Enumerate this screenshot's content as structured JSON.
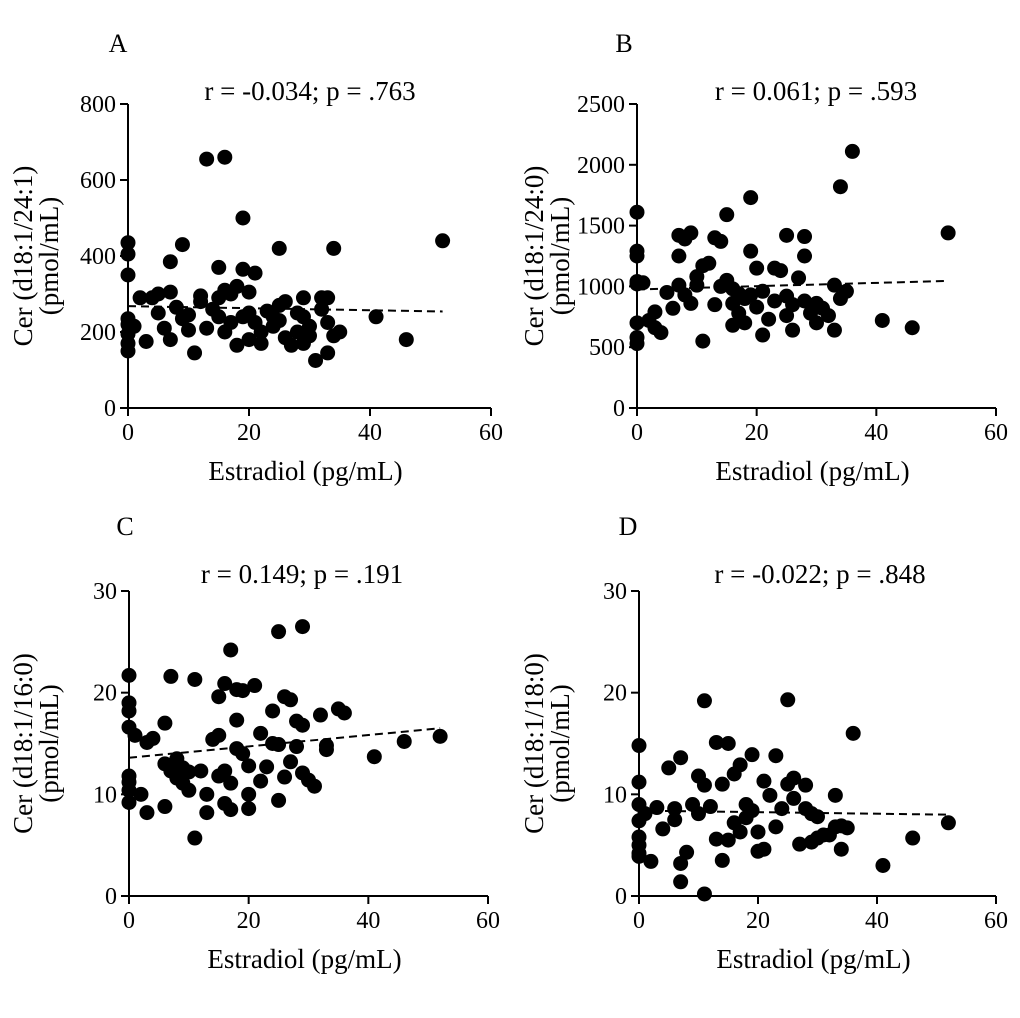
{
  "figure": {
    "background": "#ffffff",
    "ink": "#000000"
  },
  "chart_data": [
    {
      "id": "A",
      "type": "scatter",
      "panel_label": "A",
      "annotation": "r = -0.034; p = .763",
      "xlabel": "Estradiol (pg/mL)",
      "ylabel_lines": [
        "Cer (d18:1/24:1)",
        "(pmol/mL)"
      ],
      "xlim": [
        0,
        60
      ],
      "ylim": [
        0,
        800
      ],
      "xticks": [
        0,
        20,
        40,
        60
      ],
      "yticks": [
        0,
        200,
        400,
        600,
        800
      ],
      "trend": {
        "x0": 0,
        "y0": 268,
        "x1": 52,
        "y1": 254,
        "style": "dashed"
      },
      "points": [
        [
          0,
          435
        ],
        [
          0,
          405
        ],
        [
          0,
          350
        ],
        [
          0,
          235
        ],
        [
          0,
          220
        ],
        [
          0,
          195
        ],
        [
          0,
          170
        ],
        [
          0,
          150
        ],
        [
          1,
          215
        ],
        [
          2,
          290
        ],
        [
          3,
          175
        ],
        [
          4,
          290
        ],
        [
          5,
          250
        ],
        [
          5,
          300
        ],
        [
          6,
          210
        ],
        [
          7,
          180
        ],
        [
          7,
          385
        ],
        [
          7,
          305
        ],
        [
          8,
          265
        ],
        [
          9,
          430
        ],
        [
          9,
          235
        ],
        [
          10,
          245
        ],
        [
          10,
          205
        ],
        [
          11,
          145
        ],
        [
          12,
          280
        ],
        [
          12,
          295
        ],
        [
          13,
          210
        ],
        [
          13,
          655
        ],
        [
          14,
          260
        ],
        [
          15,
          240
        ],
        [
          15,
          370
        ],
        [
          16,
          660
        ],
        [
          15,
          290
        ],
        [
          16,
          310
        ],
        [
          16,
          200
        ],
        [
          17,
          225
        ],
        [
          17,
          300
        ],
        [
          18,
          320
        ],
        [
          18,
          165
        ],
        [
          19,
          500
        ],
        [
          19,
          240
        ],
        [
          19,
          365
        ],
        [
          20,
          305
        ],
        [
          20,
          180
        ],
        [
          20,
          250
        ],
        [
          21,
          355
        ],
        [
          21,
          225
        ],
        [
          22,
          200
        ],
        [
          22,
          170
        ],
        [
          23,
          255
        ],
        [
          24,
          240
        ],
        [
          24,
          215
        ],
        [
          25,
          420
        ],
        [
          25,
          270
        ],
        [
          25,
          230
        ],
        [
          26,
          280
        ],
        [
          26,
          185
        ],
        [
          27,
          165
        ],
        [
          28,
          250
        ],
        [
          28,
          200
        ],
        [
          29,
          290
        ],
        [
          29,
          240
        ],
        [
          29,
          170
        ],
        [
          30,
          215
        ],
        [
          30,
          190
        ],
        [
          31,
          125
        ],
        [
          32,
          290
        ],
        [
          32,
          260
        ],
        [
          33,
          290
        ],
        [
          33,
          225
        ],
        [
          33,
          145
        ],
        [
          34,
          420
        ],
        [
          34,
          190
        ],
        [
          35,
          200
        ],
        [
          41,
          240
        ],
        [
          46,
          180
        ],
        [
          52,
          440
        ]
      ]
    },
    {
      "id": "B",
      "type": "scatter",
      "panel_label": "B",
      "annotation": "r = 0.061; p = .593",
      "xlabel": "Estradiol (pg/mL)",
      "ylabel_lines": [
        "Cer (d18:1/24:0)",
        "(pmol/mL)"
      ],
      "xlim": [
        0,
        60
      ],
      "ylim": [
        0,
        2500
      ],
      "xticks": [
        0,
        20,
        40,
        60
      ],
      "yticks": [
        0,
        500,
        1000,
        1500,
        2000,
        2500
      ],
      "trend": {
        "x0": 0,
        "y0": 975,
        "x1": 52,
        "y1": 1045,
        "style": "dashed"
      },
      "points": [
        [
          0,
          1610
        ],
        [
          0,
          1290
        ],
        [
          0,
          1250
        ],
        [
          0,
          1040
        ],
        [
          0,
          1020
        ],
        [
          0,
          700
        ],
        [
          0,
          580
        ],
        [
          0,
          530
        ],
        [
          1,
          1030
        ],
        [
          2,
          720
        ],
        [
          3,
          790
        ],
        [
          3,
          660
        ],
        [
          4,
          620
        ],
        [
          5,
          950
        ],
        [
          6,
          820
        ],
        [
          7,
          1250
        ],
        [
          7,
          1420
        ],
        [
          7,
          1010
        ],
        [
          8,
          1390
        ],
        [
          8,
          930
        ],
        [
          9,
          1440
        ],
        [
          9,
          860
        ],
        [
          10,
          1080
        ],
        [
          10,
          1010
        ],
        [
          11,
          550
        ],
        [
          11,
          1170
        ],
        [
          12,
          1190
        ],
        [
          13,
          850
        ],
        [
          13,
          1400
        ],
        [
          14,
          1370
        ],
        [
          14,
          1000
        ],
        [
          15,
          1590
        ],
        [
          15,
          1050
        ],
        [
          16,
          980
        ],
        [
          16,
          860
        ],
        [
          16,
          680
        ],
        [
          17,
          940
        ],
        [
          17,
          780
        ],
        [
          18,
          900
        ],
        [
          18,
          700
        ],
        [
          19,
          1730
        ],
        [
          19,
          1290
        ],
        [
          19,
          930
        ],
        [
          20,
          1150
        ],
        [
          20,
          830
        ],
        [
          21,
          600
        ],
        [
          21,
          960
        ],
        [
          22,
          730
        ],
        [
          23,
          1150
        ],
        [
          23,
          880
        ],
        [
          24,
          1130
        ],
        [
          25,
          1420
        ],
        [
          25,
          920
        ],
        [
          25,
          760
        ],
        [
          26,
          850
        ],
        [
          26,
          640
        ],
        [
          27,
          1070
        ],
        [
          28,
          1410
        ],
        [
          28,
          1250
        ],
        [
          28,
          880
        ],
        [
          29,
          780
        ],
        [
          30,
          860
        ],
        [
          30,
          700
        ],
        [
          31,
          820
        ],
        [
          32,
          760
        ],
        [
          33,
          1010
        ],
        [
          33,
          640
        ],
        [
          34,
          1820
        ],
        [
          34,
          900
        ],
        [
          35,
          960
        ],
        [
          36,
          2110
        ],
        [
          41,
          720
        ],
        [
          46,
          660
        ],
        [
          52,
          1440
        ]
      ]
    },
    {
      "id": "C",
      "type": "scatter",
      "panel_label": "C",
      "annotation": "r = 0.149; p = .191",
      "xlabel": "Estradiol (pg/mL)",
      "ylabel_lines": [
        "Cer (d18:1/16:0)",
        "(pmol/mL)"
      ],
      "xlim": [
        0,
        60
      ],
      "ylim": [
        0,
        30
      ],
      "xticks": [
        0,
        20,
        40,
        60
      ],
      "yticks": [
        0,
        10,
        20,
        30
      ],
      "trend": {
        "x0": 0,
        "y0": 13.6,
        "x1": 52,
        "y1": 16.5,
        "style": "dashed"
      },
      "points": [
        [
          0,
          21.7
        ],
        [
          0,
          19.0
        ],
        [
          0,
          18.2
        ],
        [
          0,
          16.6
        ],
        [
          0,
          11.8
        ],
        [
          0,
          11.2
        ],
        [
          0,
          10.4
        ],
        [
          0,
          9.2
        ],
        [
          1,
          15.8
        ],
        [
          2,
          10.0
        ],
        [
          3,
          8.2
        ],
        [
          3,
          15.1
        ],
        [
          4,
          15.5
        ],
        [
          6,
          13.0
        ],
        [
          6,
          8.8
        ],
        [
          6,
          17.0
        ],
        [
          7,
          21.6
        ],
        [
          7,
          12.3
        ],
        [
          8,
          13.5
        ],
        [
          8,
          11.6
        ],
        [
          9,
          12.6
        ],
        [
          9,
          11.1
        ],
        [
          10,
          12.2
        ],
        [
          10,
          10.4
        ],
        [
          11,
          5.7
        ],
        [
          11,
          21.3
        ],
        [
          12,
          12.3
        ],
        [
          13,
          8.2
        ],
        [
          13,
          10.0
        ],
        [
          14,
          15.4
        ],
        [
          15,
          19.6
        ],
        [
          15,
          15.8
        ],
        [
          15,
          11.8
        ],
        [
          16,
          20.9
        ],
        [
          16,
          12.3
        ],
        [
          16,
          9.1
        ],
        [
          17,
          24.2
        ],
        [
          17,
          8.5
        ],
        [
          17,
          11.1
        ],
        [
          18,
          20.3
        ],
        [
          18,
          17.3
        ],
        [
          18,
          14.5
        ],
        [
          19,
          20.2
        ],
        [
          19,
          14.0
        ],
        [
          20,
          12.8
        ],
        [
          20,
          10.0
        ],
        [
          20,
          8.6
        ],
        [
          21,
          20.7
        ],
        [
          22,
          16.0
        ],
        [
          22,
          11.3
        ],
        [
          23,
          12.7
        ],
        [
          24,
          18.2
        ],
        [
          24,
          15.0
        ],
        [
          25,
          26.0
        ],
        [
          25,
          9.4
        ],
        [
          25,
          14.9
        ],
        [
          26,
          19.6
        ],
        [
          26,
          11.7
        ],
        [
          27,
          13.2
        ],
        [
          27,
          19.3
        ],
        [
          28,
          14.7
        ],
        [
          28,
          17.2
        ],
        [
          29,
          26.5
        ],
        [
          29,
          16.8
        ],
        [
          29,
          12.1
        ],
        [
          30,
          11.4
        ],
        [
          31,
          10.8
        ],
        [
          32,
          17.8
        ],
        [
          33,
          14.8
        ],
        [
          33,
          14.4
        ],
        [
          35,
          18.4
        ],
        [
          36,
          18.0
        ],
        [
          41,
          13.7
        ],
        [
          46,
          15.2
        ],
        [
          52,
          15.7
        ]
      ]
    },
    {
      "id": "D",
      "type": "scatter",
      "panel_label": "D",
      "annotation": "r = -0.022; p = .848",
      "xlabel": "Estradiol (pg/mL)",
      "ylabel_lines": [
        "Cer (d18:1/18:0)",
        "(pmol/mL)"
      ],
      "xlim": [
        0,
        60
      ],
      "ylim": [
        0,
        30
      ],
      "xticks": [
        0,
        20,
        40,
        60
      ],
      "yticks": [
        0,
        10,
        20,
        30
      ],
      "trend": {
        "x0": 0,
        "y0": 8.4,
        "x1": 52,
        "y1": 8.0,
        "style": "dashed"
      },
      "points": [
        [
          0,
          14.8
        ],
        [
          0,
          11.2
        ],
        [
          0,
          9.0
        ],
        [
          0,
          7.4
        ],
        [
          0,
          5.8
        ],
        [
          0,
          5.0
        ],
        [
          0,
          4.2
        ],
        [
          0,
          3.9
        ],
        [
          1,
          8.1
        ],
        [
          2,
          3.4
        ],
        [
          3,
          8.7
        ],
        [
          4,
          6.6
        ],
        [
          5,
          12.6
        ],
        [
          6,
          7.5
        ],
        [
          6,
          8.6
        ],
        [
          7,
          13.6
        ],
        [
          7,
          3.2
        ],
        [
          7,
          1.4
        ],
        [
          8,
          4.3
        ],
        [
          9,
          9.0
        ],
        [
          10,
          11.8
        ],
        [
          10,
          8.1
        ],
        [
          11,
          10.9
        ],
        [
          11,
          19.2
        ],
        [
          11,
          0.2
        ],
        [
          12,
          8.8
        ],
        [
          13,
          15.1
        ],
        [
          13,
          5.6
        ],
        [
          14,
          11.0
        ],
        [
          14,
          3.5
        ],
        [
          15,
          5.5
        ],
        [
          15,
          15.0
        ],
        [
          16,
          12.0
        ],
        [
          16,
          7.2
        ],
        [
          17,
          12.9
        ],
        [
          17,
          6.3
        ],
        [
          18,
          7.7
        ],
        [
          18,
          9.0
        ],
        [
          19,
          13.9
        ],
        [
          19,
          8.4
        ],
        [
          20,
          6.3
        ],
        [
          20,
          4.4
        ],
        [
          21,
          11.3
        ],
        [
          21,
          4.6
        ],
        [
          22,
          9.9
        ],
        [
          23,
          13.8
        ],
        [
          23,
          6.8
        ],
        [
          24,
          8.6
        ],
        [
          25,
          19.3
        ],
        [
          25,
          11.0
        ],
        [
          26,
          11.6
        ],
        [
          26,
          9.6
        ],
        [
          27,
          5.1
        ],
        [
          28,
          10.9
        ],
        [
          28,
          8.6
        ],
        [
          29,
          8.1
        ],
        [
          29,
          5.3
        ],
        [
          30,
          7.8
        ],
        [
          30,
          5.7
        ],
        [
          31,
          6.0
        ],
        [
          32,
          6.0
        ],
        [
          33,
          9.9
        ],
        [
          33,
          6.8
        ],
        [
          34,
          4.6
        ],
        [
          34,
          6.9
        ],
        [
          35,
          6.7
        ],
        [
          36,
          16.0
        ],
        [
          41,
          3.0
        ],
        [
          46,
          5.7
        ],
        [
          52,
          7.2
        ]
      ]
    }
  ]
}
